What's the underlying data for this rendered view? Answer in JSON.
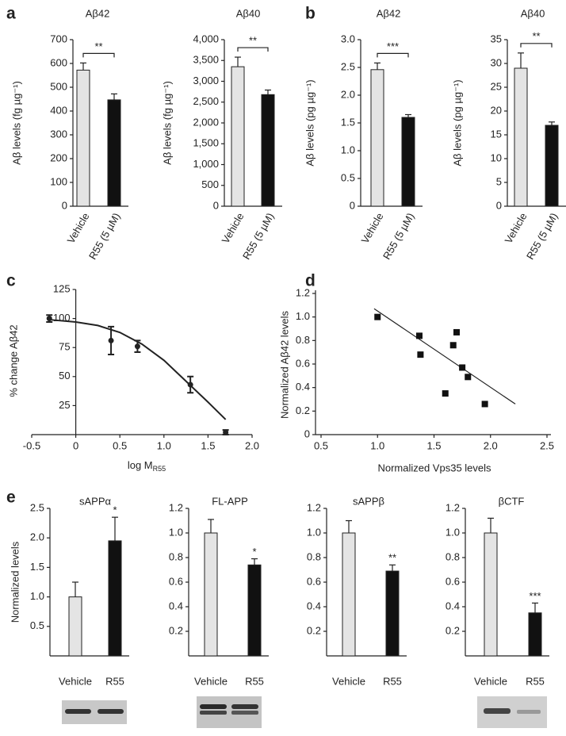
{
  "panels": [
    "a",
    "b",
    "c",
    "d",
    "e"
  ],
  "chart_data": [
    {
      "type": "bar",
      "title": "Aβ42",
      "ylabel": "Aβ levels (fg µg⁻¹)",
      "categories": [
        "Vehicle",
        "R55 (5 µM)"
      ],
      "values": [
        572,
        447
      ],
      "errors": [
        30,
        25
      ],
      "colors": [
        "#e4e4e4",
        "#111111"
      ],
      "ylim": [
        0,
        700
      ],
      "yticks": [
        0,
        100,
        200,
        300,
        400,
        500,
        600,
        700
      ],
      "significance": "**",
      "bracket": true
    },
    {
      "type": "bar",
      "title": "Aβ40",
      "ylabel": "Aβ levels (fg µg⁻¹)",
      "categories": [
        "Vehicle",
        "R55 (5 µM)"
      ],
      "values": [
        3350,
        2680
      ],
      "errors": [
        230,
        110
      ],
      "colors": [
        "#e4e4e4",
        "#111111"
      ],
      "ylim": [
        0,
        4000
      ],
      "yticks": [
        0,
        {
          "value": 1000,
          "label": "1,000"
        },
        {
          "value": 1500,
          "label": "1,500"
        },
        {
          "value": 2000,
          "label": "2,000"
        },
        {
          "value": 2500,
          "label": "2,500"
        },
        {
          "value": 3000,
          "label": "3,000"
        },
        {
          "value": 3500,
          "label": "3,500"
        },
        {
          "value": 4000,
          "label": "4,000"
        },
        500
      ],
      "significance": "**",
      "bracket": true
    },
    {
      "type": "bar",
      "title": "Aβ42",
      "ylabel": "Aβ levels (pg µg⁻¹)",
      "categories": [
        "Vehicle",
        "R55 (5 µM)"
      ],
      "values": [
        2.46,
        1.6
      ],
      "errors": [
        0.12,
        0.05
      ],
      "colors": [
        "#e4e4e4",
        "#111111"
      ],
      "ylim": [
        0,
        3
      ],
      "yticks": [
        0,
        0.5,
        {
          "value": 1,
          "label": "1.0"
        },
        1.5,
        {
          "value": 2,
          "label": "2.0"
        },
        2.5,
        {
          "value": 3,
          "label": "3.0"
        }
      ],
      "significance": "***",
      "bracket": true
    },
    {
      "type": "bar",
      "title": "Aβ40",
      "ylabel": "Aβ levels (pg µg⁻¹)",
      "categories": [
        "Vehicle",
        "R55 (5 µM)"
      ],
      "values": [
        29,
        17
      ],
      "errors": [
        3.2,
        0.7
      ],
      "colors": [
        "#e4e4e4",
        "#111111"
      ],
      "ylim": [
        0,
        35
      ],
      "yticks": [
        0,
        5,
        10,
        15,
        20,
        25,
        30,
        35
      ],
      "significance": "**",
      "bracket": true
    },
    {
      "type": "dose",
      "ylabel": "% change Aβ42",
      "xlabel": "log M",
      "xlabel_sub": "R55",
      "points": {
        "x": [
          -0.3,
          0.4,
          0.7,
          1.3,
          1.7
        ],
        "y": [
          100,
          81,
          76,
          43,
          2
        ],
        "errors": [
          3,
          12,
          5,
          7,
          2
        ]
      },
      "fit": {
        "x": [
          -0.3,
          0,
          0.25,
          0.5,
          0.75,
          1.0,
          1.25,
          1.5,
          1.7
        ],
        "y": [
          99,
          97,
          94,
          88,
          78,
          64,
          46,
          28,
          13
        ]
      },
      "xlim": [
        -0.5,
        2
      ],
      "ylim": [
        0,
        125
      ],
      "xticks": [
        -0.5,
        0,
        0.5,
        {
          "value": 1,
          "label": "1.0"
        },
        1.5,
        {
          "value": 2,
          "label": "2.0"
        }
      ],
      "yticks": [
        25,
        50,
        75,
        100,
        125
      ]
    },
    {
      "type": "scatter",
      "ylabel": "Normalized Aβ42 levels",
      "xlabel": "Normalized Vps35 levels",
      "x": [
        1.0,
        1.37,
        1.38,
        1.67,
        1.7,
        1.75,
        1.6,
        1.8,
        1.95
      ],
      "y": [
        1.0,
        0.84,
        0.68,
        0.76,
        0.87,
        0.57,
        0.35,
        0.49,
        0.26
      ],
      "trend": {
        "x": [
          0.97,
          2.22
        ],
        "y": [
          1.07,
          0.26
        ]
      },
      "xlim": [
        0.5,
        2.5
      ],
      "ylim": [
        0,
        1.2
      ],
      "xticks": [
        0.5,
        {
          "value": 1,
          "label": "1.0"
        },
        1.5,
        {
          "value": 2,
          "label": "2.0"
        },
        2.5
      ],
      "yticks": [
        0,
        0.2,
        0.4,
        0.6,
        0.8,
        {
          "value": 1,
          "label": "1.0"
        },
        1.2
      ]
    },
    {
      "type": "bar",
      "title": "sAPPα",
      "ylabel": "Normalized levels",
      "categories": [
        "Vehicle",
        "R55"
      ],
      "values": [
        1.0,
        1.95
      ],
      "errors": [
        0.25,
        0.4
      ],
      "colors": [
        "#e4e4e4",
        "#111111"
      ],
      "ylim": [
        0,
        2.5
      ],
      "yticks": [
        0.5,
        {
          "value": 1,
          "label": "1.0"
        },
        1.5,
        {
          "value": 2,
          "label": "2.0"
        },
        2.5
      ],
      "significance": "*",
      "bracket": false
    },
    {
      "type": "bar",
      "title": "FL-APP",
      "categories": [
        "Vehicle",
        "R55"
      ],
      "values": [
        1.0,
        0.74
      ],
      "errors": [
        0.11,
        0.05
      ],
      "colors": [
        "#e4e4e4",
        "#111111"
      ],
      "ylim": [
        0,
        1.2
      ],
      "yticks": [
        0.2,
        0.4,
        0.6,
        0.8,
        {
          "value": 1,
          "label": "1.0"
        },
        1.2
      ],
      "significance": "*",
      "bracket": false
    },
    {
      "type": "bar",
      "title": "sAPPβ",
      "categories": [
        "Vehicle",
        "R55"
      ],
      "values": [
        1.0,
        0.69
      ],
      "errors": [
        0.1,
        0.05
      ],
      "colors": [
        "#e4e4e4",
        "#111111"
      ],
      "ylim": [
        0,
        1.2
      ],
      "yticks": [
        0.2,
        0.4,
        0.6,
        0.8,
        {
          "value": 1,
          "label": "1.0"
        },
        1.2
      ],
      "significance": "**",
      "bracket": false
    },
    {
      "type": "bar",
      "title": "βCTF",
      "categories": [
        "Vehicle",
        "R55"
      ],
      "values": [
        1.0,
        0.35
      ],
      "errors": [
        0.12,
        0.08
      ],
      "colors": [
        "#e4e4e4",
        "#111111"
      ],
      "ylim": [
        0,
        1.2
      ],
      "yticks": [
        0.2,
        0.4,
        0.6,
        0.8,
        {
          "value": 1,
          "label": "1.0"
        },
        1.2
      ],
      "significance": "***",
      "bracket": false
    }
  ]
}
